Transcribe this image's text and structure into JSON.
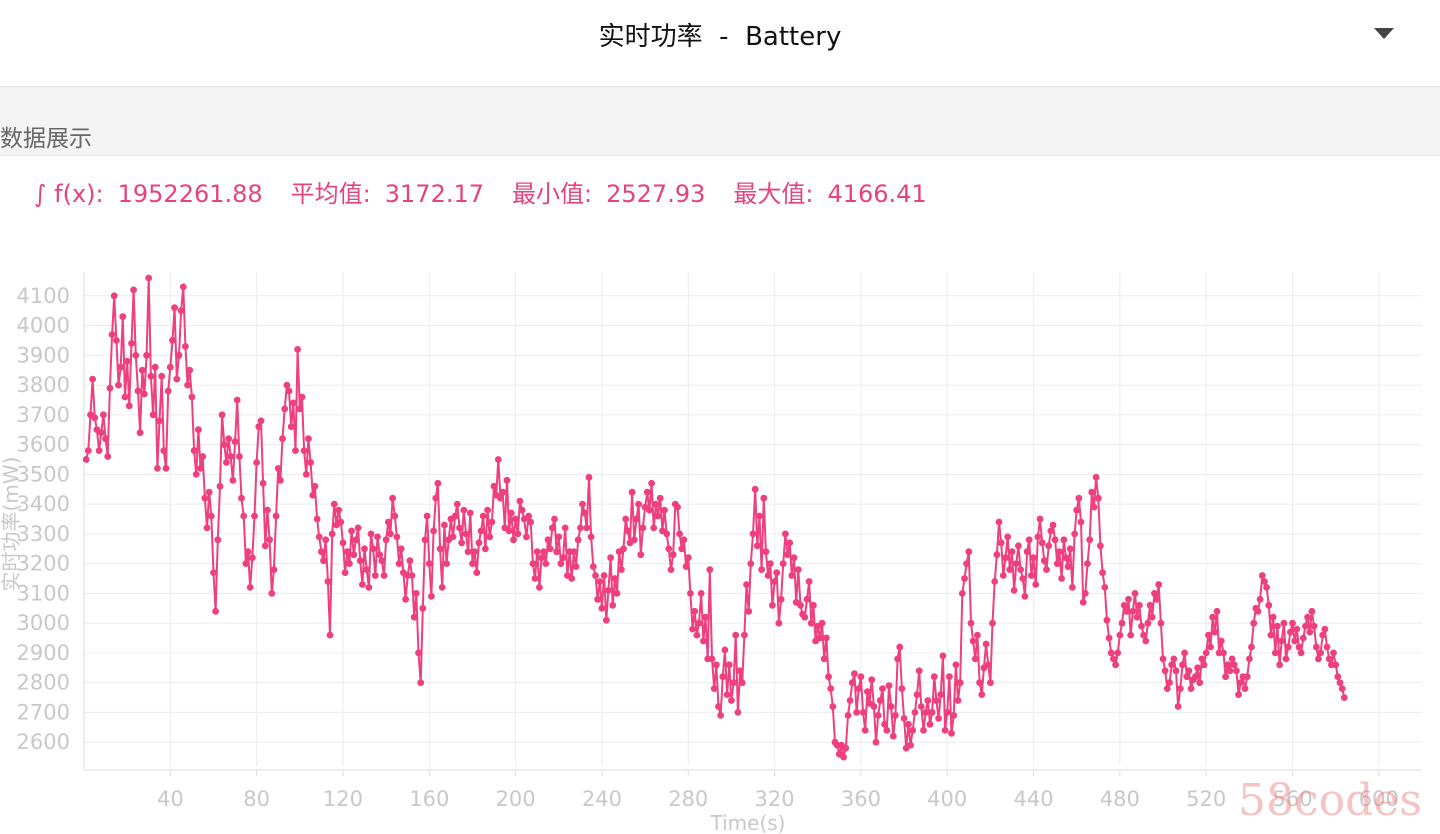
{
  "header": {
    "title": "实时功率  -  Battery",
    "dropdown_icon": "chevron-down-icon"
  },
  "section": {
    "title": "数据展示"
  },
  "stats": {
    "integral_label": "∫ f(x):",
    "integral_value": "1952261.88",
    "avg_label": "平均值:",
    "avg_value": "3172.17",
    "min_label": "最小值:",
    "min_value": "2527.93",
    "max_label": "最大值:",
    "max_value": "4166.41"
  },
  "watermark": "58codes",
  "chart_data": {
    "type": "line",
    "ylabel": "实时功率(mW)",
    "xlabel": "Time(s)",
    "xlim": [
      0,
      620
    ],
    "ylim": [
      2520,
      4180
    ],
    "x_ticks": [
      40,
      80,
      120,
      160,
      200,
      240,
      280,
      320,
      360,
      400,
      440,
      480,
      520,
      560,
      600
    ],
    "y_ticks": [
      2600,
      2700,
      2800,
      2900,
      3000,
      3100,
      3200,
      3300,
      3400,
      3500,
      3600,
      3700,
      3800,
      3900,
      4000,
      4100
    ],
    "grid": true,
    "color": "#ee3f7f",
    "series": [
      {
        "sample_interval_s": 1,
        "values": [
          3550,
          3580,
          3700,
          3820,
          3690,
          3650,
          3580,
          3640,
          3700,
          3620,
          3560,
          3790,
          3970,
          4100,
          3950,
          3800,
          3860,
          4030,
          3760,
          3880,
          3730,
          3940,
          4120,
          3900,
          3780,
          3640,
          3850,
          3770,
          3900,
          4160,
          3830,
          3700,
          3860,
          3520,
          3680,
          3830,
          3580,
          3520,
          3780,
          3860,
          3950,
          4060,
          3820,
          3900,
          4050,
          4130,
          3930,
          3800,
          3850,
          3760,
          3580,
          3500,
          3650,
          3520,
          3560,
          3420,
          3320,
          3440,
          3360,
          3170,
          3040,
          3280,
          3460,
          3700,
          3600,
          3540,
          3620,
          3560,
          3480,
          3610,
          3750,
          3560,
          3420,
          3360,
          3200,
          3240,
          3120,
          3220,
          3360,
          3540,
          3660,
          3680,
          3470,
          3260,
          3380,
          3280,
          3100,
          3180,
          3360,
          3520,
          3480,
          3620,
          3720,
          3800,
          3780,
          3660,
          3740,
          3580,
          3920,
          3720,
          3760,
          3580,
          3500,
          3620,
          3540,
          3430,
          3460,
          3350,
          3290,
          3240,
          3210,
          3280,
          3140,
          2960,
          3300,
          3400,
          3330,
          3380,
          3340,
          3270,
          3170,
          3240,
          3200,
          3310,
          3230,
          3280,
          3320,
          3210,
          3130,
          3250,
          3180,
          3120,
          3300,
          3250,
          3160,
          3290,
          3230,
          3210,
          3160,
          3280,
          3340,
          3300,
          3420,
          3360,
          3290,
          3200,
          3250,
          3170,
          3080,
          3160,
          3210,
          3160,
          3020,
          3100,
          2900,
          2800,
          3050,
          3280,
          3360,
          3200,
          3090,
          3310,
          3420,
          3470,
          3250,
          3120,
          3330,
          3200,
          3280,
          3350,
          3290,
          3360,
          3400,
          3320,
          3270,
          3380,
          3300,
          3240,
          3370,
          3200,
          3240,
          3170,
          3270,
          3310,
          3360,
          3250,
          3380,
          3290,
          3340,
          3460,
          3430,
          3550,
          3420,
          3440,
          3320,
          3480,
          3310,
          3370,
          3280,
          3350,
          3300,
          3410,
          3380,
          3350,
          3290,
          3360,
          3340,
          3200,
          3150,
          3240,
          3120,
          3220,
          3240,
          3200,
          3280,
          3250,
          3320,
          3350,
          3240,
          3290,
          3200,
          3220,
          3320,
          3160,
          3240,
          3150,
          3240,
          3190,
          3280,
          3320,
          3400,
          3370,
          3320,
          3490,
          3290,
          3190,
          3160,
          3080,
          3140,
          3050,
          3160,
          3010,
          3110,
          3220,
          3060,
          3150,
          3100,
          3240,
          3180,
          3250,
          3350,
          3310,
          3270,
          3440,
          3280,
          3350,
          3400,
          3230,
          3320,
          3390,
          3440,
          3380,
          3470,
          3320,
          3400,
          3360,
          3420,
          3310,
          3380,
          3300,
          3250,
          3180,
          3230,
          3400,
          3390,
          3300,
          3250,
          3280,
          3190,
          3220,
          3100,
          2980,
          3040,
          2960,
          3000,
          3100,
          2940,
          3020,
          2880,
          3180,
          2880,
          2780,
          2860,
          2720,
          2690,
          2820,
          2910,
          2760,
          2860,
          2740,
          2800,
          2960,
          2700,
          2840,
          2800,
          2960,
          3130,
          3040,
          3200,
          3300,
          3450,
          3260,
          3360,
          3180,
          3420,
          3240,
          3160,
          3200,
          3060,
          3140,
          3170,
          3000,
          3080,
          3200,
          3300,
          3230,
          3270,
          3160,
          3220,
          3070,
          3180,
          3060,
          3030,
          3020,
          3080,
          3140,
          3000,
          3060,
          2940,
          2990,
          2950,
          3000,
          2880,
          2950,
          2820,
          2780,
          2720,
          2600,
          2590,
          2560,
          2590,
          2550,
          2580,
          2690,
          2740,
          2800,
          2830,
          2700,
          2780,
          2820,
          2700,
          2640,
          2770,
          2730,
          2810,
          2720,
          2600,
          2690,
          2740,
          2780,
          2660,
          2640,
          2790,
          2720,
          2620,
          2690,
          2880,
          2920,
          2780,
          2680,
          2580,
          2660,
          2590,
          2640,
          2700,
          2760,
          2840,
          2720,
          2640,
          2700,
          2740,
          2660,
          2700,
          2820,
          2740,
          2680,
          2760,
          2890,
          2640,
          2700,
          2820,
          2630,
          2690,
          2860,
          2740,
          2800,
          3100,
          3150,
          3200,
          3240,
          3000,
          2940,
          2880,
          2960,
          2800,
          2760,
          2850,
          2930,
          2860,
          2800,
          3000,
          3140,
          3230,
          3340,
          3270,
          3160,
          3220,
          3290,
          3180,
          3240,
          3110,
          3200,
          3260,
          3180,
          3150,
          3090,
          3240,
          3280,
          3160,
          3220,
          3130,
          3290,
          3350,
          3270,
          3210,
          3180,
          3260,
          3310,
          3330,
          3280,
          3200,
          3240,
          3150,
          3280,
          3220,
          3190,
          3250,
          3120,
          3300,
          3380,
          3420,
          3340,
          3070,
          3100,
          3200,
          3280,
          3440,
          3390,
          3490,
          3420,
          3260,
          3170,
          3120,
          3010,
          2950,
          2900,
          2880,
          2860,
          2900,
          2960,
          3000,
          3060,
          3040,
          3080,
          2960,
          3040,
          3100,
          3020,
          3060,
          2990,
          2960,
          2940,
          3000,
          3060,
          3020,
          3100,
          3080,
          3130,
          3000,
          2880,
          2840,
          2780,
          2800,
          2860,
          2880,
          2840,
          2720,
          2780,
          2860,
          2900,
          2820,
          2840,
          2780,
          2810,
          2820,
          2850,
          2800,
          2880,
          2860,
          2900,
          2960,
          2920,
          3020,
          2970,
          3040,
          2900,
          2940,
          2900,
          2820,
          2860,
          2840,
          2880,
          2860,
          2840,
          2760,
          2800,
          2820,
          2780,
          2820,
          2880,
          2920,
          3000,
          3050,
          3040,
          3080,
          3160,
          3140,
          3120,
          3060,
          2960,
          3020,
          2900,
          2990,
          2860,
          2940,
          3000,
          2880,
          2920,
          2970,
          3000,
          2940,
          2980,
          2920,
          2900,
          2950,
          2990,
          3020,
          2970,
          3040,
          2990,
          2920,
          2880,
          2900,
          2960,
          2980,
          2920,
          2880,
          2860,
          2900,
          2860,
          2820,
          2800,
          2780,
          2750
        ]
      }
    ]
  }
}
